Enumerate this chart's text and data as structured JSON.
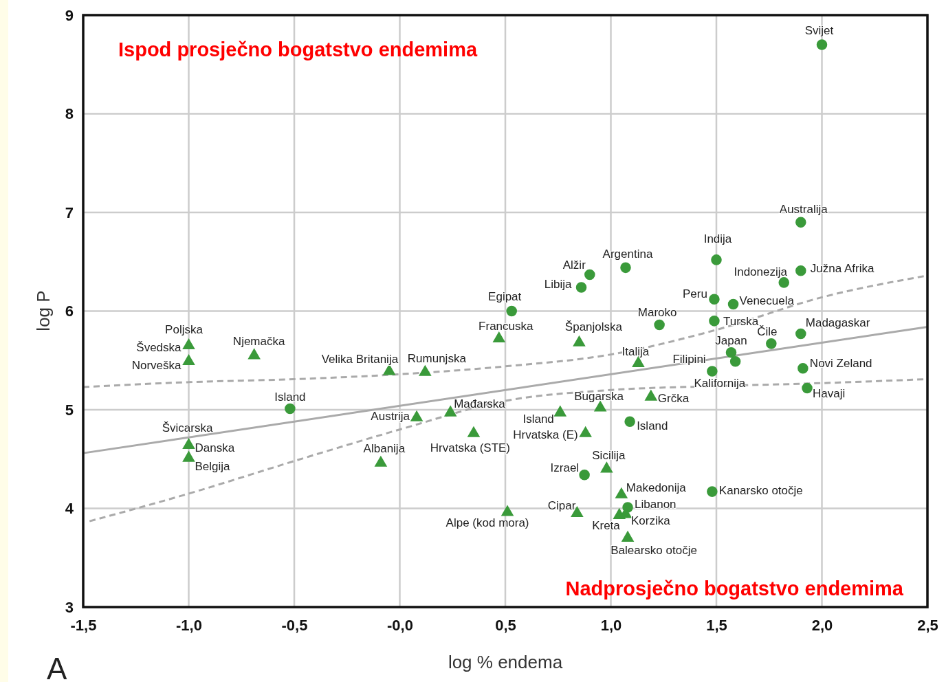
{
  "chart_data": {
    "type": "scatter",
    "xlabel": "log % endema",
    "ylabel": "log P",
    "xlim": [
      -1.5,
      2.5
    ],
    "ylim": [
      3,
      9
    ],
    "xticks": [
      {
        "value": -1.5,
        "label": "-1,5"
      },
      {
        "value": -1,
        "label": "-1,0"
      },
      {
        "value": -0.5,
        "label": "-0,5"
      },
      {
        "value": 0,
        "label": "-0,0"
      },
      {
        "value": 0.5,
        "label": "0,5"
      },
      {
        "value": 1,
        "label": "1,0"
      },
      {
        "value": 1.5,
        "label": "1,5"
      },
      {
        "value": 2,
        "label": "2,0"
      },
      {
        "value": 2.5,
        "label": "2,5"
      }
    ],
    "yticks": [
      3,
      4,
      5,
      6,
      7,
      8,
      9
    ],
    "grid": true,
    "series": [
      {
        "marker": "circle",
        "color": "#3a9a3a",
        "x": [
          2.0,
          1.9,
          1.5,
          1.9,
          1.82,
          1.07,
          0.9,
          0.86,
          1.49,
          1.58,
          0.53,
          1.49,
          1.23,
          1.9,
          1.76,
          1.57,
          1.59,
          1.48,
          1.91,
          1.93,
          -0.52,
          1.09,
          0.875,
          1.48,
          1.08
        ],
        "values": [
          8.7,
          6.9,
          6.52,
          6.41,
          6.29,
          6.44,
          6.37,
          6.24,
          6.12,
          6.07,
          6.0,
          5.9,
          5.86,
          5.77,
          5.67,
          5.58,
          5.49,
          5.39,
          5.42,
          5.22,
          5.01,
          4.88,
          4.34,
          4.17,
          4.01
        ]
      },
      {
        "marker": "triangle",
        "color": "#3a9a3a",
        "x": [
          -1.0,
          -1.0,
          -0.69,
          -0.05,
          0.12,
          0.47,
          0.85,
          1.13,
          1.19,
          0.95,
          0.76,
          0.24,
          0.08,
          -1.0,
          -1.0,
          -0.09,
          0.98,
          1.05,
          0.51,
          0.84,
          1.04,
          1.07,
          1.08
        ],
        "values": [
          5.65,
          5.49,
          5.55,
          5.39,
          5.38,
          5.72,
          5.68,
          5.47,
          5.13,
          5.02,
          4.97,
          4.97,
          4.92,
          4.64,
          4.51,
          4.46,
          4.4,
          4.14,
          3.96,
          3.95,
          3.93,
          3.94,
          3.7
        ]
      },
      {
        "marker": "triangle",
        "color": "#3a9a3a",
        "x": [
          0.35,
          0.88
        ],
        "values": [
          4.76,
          4.76
        ]
      },
      {
        "type": "line",
        "color": "#aaaaaa",
        "line_style": "solid",
        "x": [
          -1.5,
          2.5
        ],
        "values": [
          4.56,
          5.84
        ]
      },
      {
        "type": "line",
        "color": "#aaaaaa",
        "line_style": "dashed",
        "x": [
          -1.5,
          -1,
          -0.5,
          0,
          0.5,
          1,
          1.5,
          2,
          2.5
        ],
        "values": [
          5.23,
          5.28,
          5.31,
          5.36,
          5.44,
          5.56,
          5.81,
          6.14,
          6.36
        ]
      },
      {
        "type": "line",
        "color": "#aaaaaa",
        "line_style": "dashed",
        "x": [
          -1.47,
          -1,
          -0.5,
          0,
          0.5,
          1,
          1.5,
          2,
          2.5
        ],
        "values": [
          3.87,
          4.15,
          4.48,
          4.8,
          5.09,
          5.2,
          5.24,
          5.27,
          5.31
        ]
      }
    ],
    "annotations": [
      {
        "text": "Svijet",
        "x": 2.0,
        "y": 8.7
      },
      {
        "text": "Australija",
        "x": 1.9,
        "y": 6.9
      },
      {
        "text": "Indija",
        "x": 1.5,
        "y": 6.52
      },
      {
        "text": "Južna Afrika",
        "x": 1.9,
        "y": 6.41
      },
      {
        "text": "Indonezija",
        "x": 1.82,
        "y": 6.29
      },
      {
        "text": "Argentina",
        "x": 1.07,
        "y": 6.44
      },
      {
        "text": "Alžir",
        "x": 0.9,
        "y": 6.37
      },
      {
        "text": "Libija",
        "x": 0.86,
        "y": 6.24
      },
      {
        "text": "Peru",
        "x": 1.49,
        "y": 6.12
      },
      {
        "text": "Venecuela",
        "x": 1.58,
        "y": 6.07
      },
      {
        "text": "Egipat",
        "x": 0.53,
        "y": 6.0
      },
      {
        "text": "Turska",
        "x": 1.49,
        "y": 5.9
      },
      {
        "text": "Maroko",
        "x": 1.23,
        "y": 5.86
      },
      {
        "text": "Madagaskar",
        "x": 1.9,
        "y": 5.77
      },
      {
        "text": "Čile",
        "x": 1.76,
        "y": 5.67
      },
      {
        "text": "Japan",
        "x": 1.57,
        "y": 5.58
      },
      {
        "text": "Filipini",
        "x": 1.59,
        "y": 5.49
      },
      {
        "text": "Kalifornija",
        "x": 1.48,
        "y": 5.39
      },
      {
        "text": "Novi Zeland",
        "x": 1.91,
        "y": 5.42
      },
      {
        "text": "Havaji",
        "x": 1.93,
        "y": 5.22
      },
      {
        "text": "Island",
        "x": -0.52,
        "y": 5.01
      },
      {
        "text": "Island",
        "x": 1.09,
        "y": 4.88
      },
      {
        "text": "Izrael",
        "x": 0.875,
        "y": 4.34
      },
      {
        "text": "Kanarsko otočje",
        "x": 1.48,
        "y": 4.17
      },
      {
        "text": "Libanon",
        "x": 1.08,
        "y": 4.01
      },
      {
        "text": "Poljska",
        "x": -1.0,
        "y": 5.67
      },
      {
        "text": "Švedska",
        "x": -1.0,
        "y": 5.65
      },
      {
        "text": "Norveška",
        "x": -1.0,
        "y": 5.49
      },
      {
        "text": "Njemačka",
        "x": -0.69,
        "y": 5.55
      },
      {
        "text": "Velika Britanija",
        "x": -0.05,
        "y": 5.39
      },
      {
        "text": "Rumunjska",
        "x": 0.12,
        "y": 5.38
      },
      {
        "text": "Francuska",
        "x": 0.47,
        "y": 5.72
      },
      {
        "text": "Španjolska",
        "x": 0.85,
        "y": 5.68
      },
      {
        "text": "Italija",
        "x": 1.13,
        "y": 5.47
      },
      {
        "text": "Grčka",
        "x": 1.19,
        "y": 5.13
      },
      {
        "text": "Bugarska",
        "x": 0.95,
        "y": 5.02
      },
      {
        "text": "Island",
        "x": 0.76,
        "y": 4.97
      },
      {
        "text": "Mađarska",
        "x": 0.24,
        "y": 4.97
      },
      {
        "text": "Austrija",
        "x": 0.08,
        "y": 4.92
      },
      {
        "text": "Švicarska",
        "x": -1.0,
        "y": 4.66
      },
      {
        "text": "Danska",
        "x": -1.0,
        "y": 4.64
      },
      {
        "text": "Belgija",
        "x": -1.0,
        "y": 4.51
      },
      {
        "text": "Albanija",
        "x": -0.09,
        "y": 4.46
      },
      {
        "text": "Sicilija",
        "x": 0.98,
        "y": 4.4
      },
      {
        "text": "Makedonija",
        "x": 1.05,
        "y": 4.14
      },
      {
        "text": "Alpe (kod mora)",
        "x": 0.51,
        "y": 3.96
      },
      {
        "text": "Cipar",
        "x": 0.84,
        "y": 3.95
      },
      {
        "text": "Kreta",
        "x": 1.04,
        "y": 3.93
      },
      {
        "text": "Korzika",
        "x": 1.07,
        "y": 3.94
      },
      {
        "text": "Balearsko otočje",
        "x": 1.08,
        "y": 3.7
      },
      {
        "text": "Hrvatska (STE)",
        "x": 0.35,
        "y": 4.76
      },
      {
        "text": "Hrvatska (E)",
        "x": 0.88,
        "y": 4.76
      },
      "Ispod prosječno bogatstvo endemima",
      "Nadprosječno bogatstvo endemima",
      "A"
    ]
  }
}
